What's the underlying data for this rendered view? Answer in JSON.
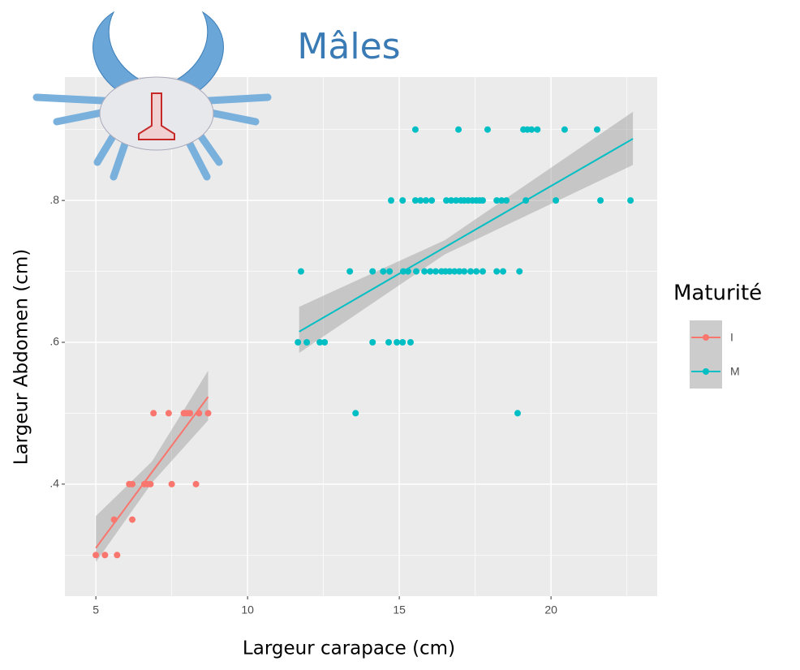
{
  "chart_data": {
    "type": "scatter",
    "title": "Mâles",
    "x_label": "Largeur carapace (cm)",
    "y_label": "Largeur Abdomen (cm)",
    "legend_title": "Maturité",
    "legend_position": "right",
    "grid": true,
    "xlim": [
      3.98,
      23.5
    ],
    "ylim": [
      0.242,
      0.974
    ],
    "xticks": [
      5,
      10,
      15,
      20
    ],
    "yticks": [
      {
        "value": 0.4,
        "label": ".4"
      },
      {
        "value": 0.6,
        "label": ".6"
      },
      {
        "value": 0.8,
        "label": ".8"
      }
    ],
    "minor_xticks": [
      7.5,
      12.5,
      17.5,
      22.5
    ],
    "minor_yticks": [
      0.3,
      0.5,
      0.7,
      0.9
    ],
    "series": [
      {
        "name": "I",
        "color": "#F8766D",
        "x": [
          5.0,
          5.3,
          5.7,
          5.6,
          6.2,
          6.1,
          6.2,
          6.6,
          6.7,
          6.8,
          7.5,
          8.3,
          6.9,
          7.4,
          7.9,
          8.0,
          8.1,
          8.4,
          8.7
        ],
        "values": [
          0.3,
          0.3,
          0.3,
          0.35,
          0.35,
          0.4,
          0.4,
          0.4,
          0.4,
          0.4,
          0.4,
          0.4,
          0.5,
          0.5,
          0.5,
          0.5,
          0.5,
          0.5,
          0.5
        ]
      },
      {
        "name": "M",
        "color": "#00BFC4",
        "x": [
          15.53,
          16.95,
          17.91,
          19.09,
          19.22,
          19.36,
          19.55,
          20.45,
          21.52,
          14.73,
          15.11,
          15.53,
          15.7,
          15.88,
          16.07,
          16.55,
          16.71,
          16.87,
          17.03,
          17.14,
          17.27,
          17.41,
          17.54,
          17.65,
          17.75,
          18.21,
          18.37,
          18.53,
          19.17,
          20.16,
          21.63,
          22.62,
          11.76,
          13.37,
          14.12,
          14.47,
          14.68,
          15.13,
          15.29,
          15.56,
          15.83,
          16.02,
          16.2,
          16.39,
          16.52,
          16.66,
          16.82,
          16.98,
          17.14,
          17.35,
          17.54,
          17.75,
          18.21,
          18.42,
          18.96,
          11.66,
          11.95,
          12.38,
          12.54,
          14.12,
          14.65,
          14.92,
          15.11,
          15.37,
          13.56,
          18.9
        ],
        "values": [
          0.9,
          0.9,
          0.9,
          0.9,
          0.9,
          0.9,
          0.9,
          0.9,
          0.9,
          0.8,
          0.8,
          0.8,
          0.8,
          0.8,
          0.8,
          0.8,
          0.8,
          0.8,
          0.8,
          0.8,
          0.8,
          0.8,
          0.8,
          0.8,
          0.8,
          0.8,
          0.8,
          0.8,
          0.8,
          0.8,
          0.8,
          0.8,
          0.7,
          0.7,
          0.7,
          0.7,
          0.7,
          0.7,
          0.7,
          0.7,
          0.7,
          0.7,
          0.7,
          0.7,
          0.7,
          0.7,
          0.7,
          0.7,
          0.7,
          0.7,
          0.7,
          0.7,
          0.7,
          0.7,
          0.7,
          0.6,
          0.6,
          0.6,
          0.6,
          0.6,
          0.6,
          0.6,
          0.6,
          0.6,
          0.5,
          0.5
        ]
      }
    ],
    "fits": [
      {
        "name": "I",
        "color": "#F8766D",
        "x": [
          5.0,
          6.85,
          8.7
        ],
        "values": [
          0.31,
          0.417,
          0.523
        ],
        "lower": [
          0.29,
          0.402,
          0.49
        ],
        "upper": [
          0.355,
          0.432,
          0.56
        ]
      },
      {
        "name": "M",
        "color": "#00BFC4",
        "x": [
          11.7,
          16.5,
          22.7
        ],
        "values": [
          0.615,
          0.734,
          0.887
        ],
        "lower": [
          0.585,
          0.724,
          0.85
        ],
        "upper": [
          0.65,
          0.744,
          0.925
        ]
      }
    ]
  }
}
